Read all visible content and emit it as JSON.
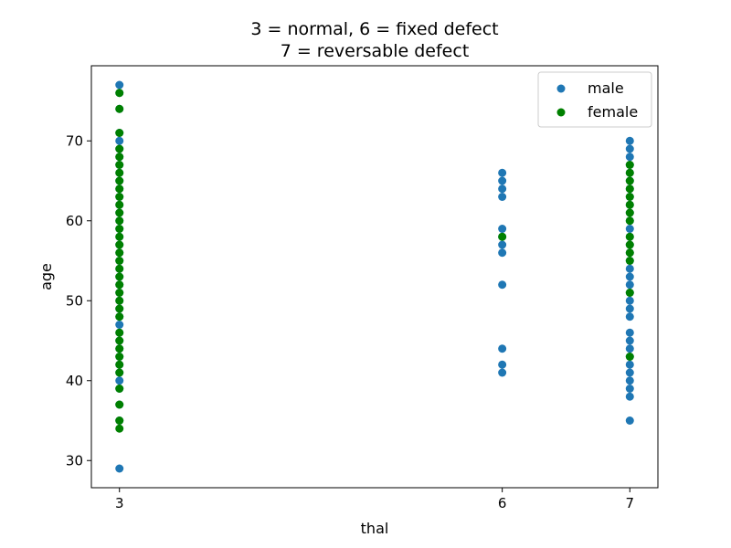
{
  "chart_data": {
    "type": "scatter",
    "title_lines": [
      "3 = normal, 6 = fixed defect",
      "7 = reversable defect"
    ],
    "xlabel": "thal",
    "ylabel": "age",
    "xticks": [
      3,
      6,
      7
    ],
    "yticks": [
      30,
      40,
      50,
      60,
      70
    ],
    "xlim": [
      2.78,
      7.22
    ],
    "ylim": [
      26.6,
      79.4
    ],
    "legend_position": "top-right",
    "series": [
      {
        "name": "male",
        "color": "#1f77b4",
        "points": [
          [
            3,
            29
          ],
          [
            3,
            35
          ],
          [
            3,
            37
          ],
          [
            3,
            39
          ],
          [
            3,
            40
          ],
          [
            3,
            41
          ],
          [
            3,
            42
          ],
          [
            3,
            43
          ],
          [
            3,
            44
          ],
          [
            3,
            45
          ],
          [
            3,
            46
          ],
          [
            3,
            47
          ],
          [
            3,
            48
          ],
          [
            3,
            49
          ],
          [
            3,
            50
          ],
          [
            3,
            51
          ],
          [
            3,
            52
          ],
          [
            3,
            53
          ],
          [
            3,
            54
          ],
          [
            3,
            55
          ],
          [
            3,
            56
          ],
          [
            3,
            57
          ],
          [
            3,
            58
          ],
          [
            3,
            59
          ],
          [
            3,
            60
          ],
          [
            3,
            61
          ],
          [
            3,
            62
          ],
          [
            3,
            63
          ],
          [
            3,
            64
          ],
          [
            3,
            65
          ],
          [
            3,
            66
          ],
          [
            3,
            67
          ],
          [
            3,
            68
          ],
          [
            3,
            69
          ],
          [
            3,
            70
          ],
          [
            3,
            71
          ],
          [
            3,
            74
          ],
          [
            3,
            76
          ],
          [
            3,
            77
          ],
          [
            6,
            41
          ],
          [
            6,
            42
          ],
          [
            6,
            44
          ],
          [
            6,
            52
          ],
          [
            6,
            56
          ],
          [
            6,
            57
          ],
          [
            6,
            58
          ],
          [
            6,
            59
          ],
          [
            6,
            63
          ],
          [
            6,
            64
          ],
          [
            6,
            65
          ],
          [
            6,
            66
          ],
          [
            7,
            35
          ],
          [
            7,
            38
          ],
          [
            7,
            39
          ],
          [
            7,
            40
          ],
          [
            7,
            41
          ],
          [
            7,
            42
          ],
          [
            7,
            43
          ],
          [
            7,
            44
          ],
          [
            7,
            45
          ],
          [
            7,
            46
          ],
          [
            7,
            48
          ],
          [
            7,
            49
          ],
          [
            7,
            50
          ],
          [
            7,
            51
          ],
          [
            7,
            52
          ],
          [
            7,
            53
          ],
          [
            7,
            54
          ],
          [
            7,
            55
          ],
          [
            7,
            56
          ],
          [
            7,
            57
          ],
          [
            7,
            58
          ],
          [
            7,
            59
          ],
          [
            7,
            60
          ],
          [
            7,
            61
          ],
          [
            7,
            62
          ],
          [
            7,
            63
          ],
          [
            7,
            64
          ],
          [
            7,
            65
          ],
          [
            7,
            66
          ],
          [
            7,
            67
          ],
          [
            7,
            68
          ],
          [
            7,
            69
          ],
          [
            7,
            70
          ]
        ]
      },
      {
        "name": "female",
        "color": "#008000",
        "points": [
          [
            3,
            34
          ],
          [
            3,
            35
          ],
          [
            3,
            37
          ],
          [
            3,
            39
          ],
          [
            3,
            41
          ],
          [
            3,
            42
          ],
          [
            3,
            43
          ],
          [
            3,
            44
          ],
          [
            3,
            45
          ],
          [
            3,
            46
          ],
          [
            3,
            48
          ],
          [
            3,
            49
          ],
          [
            3,
            50
          ],
          [
            3,
            51
          ],
          [
            3,
            52
          ],
          [
            3,
            53
          ],
          [
            3,
            54
          ],
          [
            3,
            55
          ],
          [
            3,
            56
          ],
          [
            3,
            57
          ],
          [
            3,
            58
          ],
          [
            3,
            59
          ],
          [
            3,
            60
          ],
          [
            3,
            61
          ],
          [
            3,
            62
          ],
          [
            3,
            63
          ],
          [
            3,
            64
          ],
          [
            3,
            65
          ],
          [
            3,
            66
          ],
          [
            3,
            67
          ],
          [
            3,
            68
          ],
          [
            3,
            69
          ],
          [
            3,
            71
          ],
          [
            3,
            74
          ],
          [
            3,
            76
          ],
          [
            6,
            58
          ],
          [
            7,
            43
          ],
          [
            7,
            51
          ],
          [
            7,
            55
          ],
          [
            7,
            56
          ],
          [
            7,
            57
          ],
          [
            7,
            58
          ],
          [
            7,
            60
          ],
          [
            7,
            61
          ],
          [
            7,
            62
          ],
          [
            7,
            63
          ],
          [
            7,
            64
          ],
          [
            7,
            65
          ],
          [
            7,
            66
          ],
          [
            7,
            67
          ]
        ]
      }
    ]
  }
}
